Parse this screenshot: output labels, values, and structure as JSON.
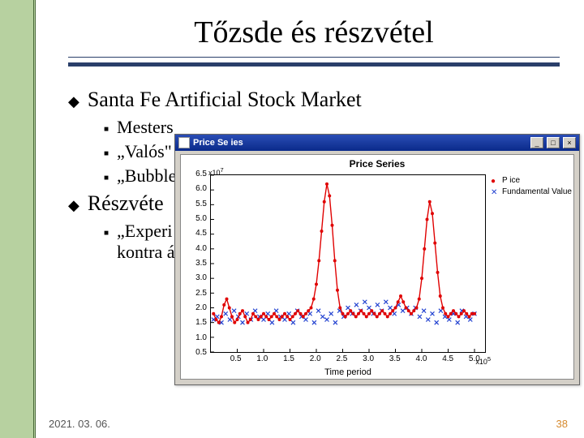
{
  "title": "Tőzsde és részvétel",
  "date": "2021. 03. 06.",
  "page_number": "38",
  "bullets": {
    "item1": "Santa Fe Artificial Stock Market",
    "item1_subs": [
      "Mesters",
      "„Valós\"",
      "„Bubble"
    ],
    "item2": "Részvéte",
    "item2_subs_line1": "„Experi",
    "item2_subs_line2": "kontra á"
  },
  "colors": {
    "left_stripe": "#b7d1a0",
    "underline": "#2a3f6a",
    "page_color": "#d68a2e"
  },
  "chart_window": {
    "titlebar_text": "Price Se ies",
    "chart_title": "Price Series",
    "xlabel": "Time period",
    "y_exponent": "x10",
    "y_exponent_sup": "7",
    "x_exponent": "x10",
    "x_exponent_sup": "5",
    "legend": [
      {
        "label": "P ice",
        "marker": "dot",
        "color": "#e00000"
      },
      {
        "label": "Fundamental Value",
        "marker": "cross",
        "color": "#2040d0"
      }
    ],
    "yticks": [
      "0.5",
      "1.0",
      "1.5",
      "2.0",
      "2.5",
      "3.0",
      "3.5",
      "4.0",
      "4.5",
      "5.0",
      "5.5",
      "6.0",
      "6.5"
    ],
    "xticks": [
      "0.5",
      "1.0",
      "1.5",
      "2.0",
      "2.5",
      "3.0",
      "3.5",
      "4.0",
      "4.5",
      "5.0"
    ],
    "xlim": [
      0.0,
      5.2
    ],
    "ylim": [
      0.5,
      6.5
    ],
    "price_series": {
      "color": "#e00000",
      "points": [
        [
          0.05,
          1.8
        ],
        [
          0.1,
          1.6
        ],
        [
          0.15,
          1.5
        ],
        [
          0.2,
          1.7
        ],
        [
          0.25,
          2.1
        ],
        [
          0.3,
          2.3
        ],
        [
          0.35,
          2.0
        ],
        [
          0.4,
          1.7
        ],
        [
          0.45,
          1.5
        ],
        [
          0.5,
          1.6
        ],
        [
          0.55,
          1.8
        ],
        [
          0.6,
          1.9
        ],
        [
          0.65,
          1.7
        ],
        [
          0.7,
          1.5
        ],
        [
          0.75,
          1.6
        ],
        [
          0.8,
          1.8
        ],
        [
          0.85,
          1.7
        ],
        [
          0.9,
          1.6
        ],
        [
          0.95,
          1.7
        ],
        [
          1.0,
          1.8
        ],
        [
          1.05,
          1.7
        ],
        [
          1.1,
          1.6
        ],
        [
          1.15,
          1.7
        ],
        [
          1.2,
          1.8
        ],
        [
          1.25,
          1.7
        ],
        [
          1.3,
          1.6
        ],
        [
          1.35,
          1.7
        ],
        [
          1.4,
          1.8
        ],
        [
          1.45,
          1.7
        ],
        [
          1.5,
          1.6
        ],
        [
          1.55,
          1.7
        ],
        [
          1.6,
          1.8
        ],
        [
          1.65,
          1.9
        ],
        [
          1.7,
          1.8
        ],
        [
          1.75,
          1.7
        ],
        [
          1.8,
          1.8
        ],
        [
          1.85,
          1.9
        ],
        [
          1.9,
          2.0
        ],
        [
          1.95,
          2.3
        ],
        [
          2.0,
          2.8
        ],
        [
          2.05,
          3.6
        ],
        [
          2.1,
          4.6
        ],
        [
          2.15,
          5.6
        ],
        [
          2.2,
          6.2
        ],
        [
          2.25,
          5.8
        ],
        [
          2.3,
          4.8
        ],
        [
          2.35,
          3.6
        ],
        [
          2.4,
          2.6
        ],
        [
          2.45,
          2.0
        ],
        [
          2.5,
          1.8
        ],
        [
          2.55,
          1.7
        ],
        [
          2.6,
          1.8
        ],
        [
          2.65,
          1.9
        ],
        [
          2.7,
          1.8
        ],
        [
          2.75,
          1.7
        ],
        [
          2.8,
          1.8
        ],
        [
          2.85,
          1.9
        ],
        [
          2.9,
          1.8
        ],
        [
          2.95,
          1.7
        ],
        [
          3.0,
          1.8
        ],
        [
          3.05,
          1.9
        ],
        [
          3.1,
          1.8
        ],
        [
          3.15,
          1.7
        ],
        [
          3.2,
          1.8
        ],
        [
          3.25,
          1.9
        ],
        [
          3.3,
          1.8
        ],
        [
          3.35,
          1.7
        ],
        [
          3.4,
          1.8
        ],
        [
          3.45,
          1.9
        ],
        [
          3.5,
          2.0
        ],
        [
          3.55,
          2.2
        ],
        [
          3.6,
          2.4
        ],
        [
          3.65,
          2.2
        ],
        [
          3.7,
          2.0
        ],
        [
          3.75,
          1.9
        ],
        [
          3.8,
          1.8
        ],
        [
          3.85,
          1.9
        ],
        [
          3.9,
          2.0
        ],
        [
          3.95,
          2.3
        ],
        [
          4.0,
          3.0
        ],
        [
          4.05,
          4.0
        ],
        [
          4.1,
          5.0
        ],
        [
          4.15,
          5.6
        ],
        [
          4.2,
          5.2
        ],
        [
          4.25,
          4.2
        ],
        [
          4.3,
          3.2
        ],
        [
          4.35,
          2.4
        ],
        [
          4.4,
          2.0
        ],
        [
          4.45,
          1.8
        ],
        [
          4.5,
          1.7
        ],
        [
          4.55,
          1.8
        ],
        [
          4.6,
          1.9
        ],
        [
          4.65,
          1.8
        ],
        [
          4.7,
          1.7
        ],
        [
          4.75,
          1.8
        ],
        [
          4.8,
          1.9
        ],
        [
          4.85,
          1.8
        ],
        [
          4.9,
          1.7
        ],
        [
          4.95,
          1.8
        ],
        [
          5.0,
          1.8
        ]
      ]
    },
    "fundamental_series": {
      "color": "#2040d0",
      "points": [
        [
          0.05,
          1.6
        ],
        [
          0.12,
          1.7
        ],
        [
          0.2,
          1.5
        ],
        [
          0.28,
          1.8
        ],
        [
          0.36,
          1.6
        ],
        [
          0.44,
          1.9
        ],
        [
          0.52,
          1.7
        ],
        [
          0.6,
          1.5
        ],
        [
          0.68,
          1.8
        ],
        [
          0.76,
          1.6
        ],
        [
          0.84,
          1.9
        ],
        [
          0.92,
          1.7
        ],
        [
          1.0,
          1.6
        ],
        [
          1.08,
          1.8
        ],
        [
          1.16,
          1.5
        ],
        [
          1.24,
          1.9
        ],
        [
          1.32,
          1.7
        ],
        [
          1.4,
          1.6
        ],
        [
          1.48,
          1.8
        ],
        [
          1.56,
          1.5
        ],
        [
          1.64,
          1.9
        ],
        [
          1.72,
          1.7
        ],
        [
          1.8,
          1.6
        ],
        [
          1.88,
          1.8
        ],
        [
          1.96,
          1.5
        ],
        [
          2.04,
          1.9
        ],
        [
          2.12,
          1.7
        ],
        [
          2.2,
          1.6
        ],
        [
          2.28,
          1.8
        ],
        [
          2.36,
          1.5
        ],
        [
          2.44,
          1.9
        ],
        [
          2.52,
          1.7
        ],
        [
          2.6,
          2.0
        ],
        [
          2.68,
          1.8
        ],
        [
          2.76,
          2.1
        ],
        [
          2.84,
          1.9
        ],
        [
          2.92,
          2.2
        ],
        [
          3.0,
          2.0
        ],
        [
          3.08,
          1.8
        ],
        [
          3.16,
          2.1
        ],
        [
          3.24,
          1.9
        ],
        [
          3.32,
          2.2
        ],
        [
          3.4,
          2.0
        ],
        [
          3.48,
          1.8
        ],
        [
          3.56,
          2.1
        ],
        [
          3.64,
          1.9
        ],
        [
          3.72,
          2.0
        ],
        [
          3.8,
          1.8
        ],
        [
          3.88,
          2.0
        ],
        [
          3.96,
          1.7
        ],
        [
          4.04,
          1.9
        ],
        [
          4.12,
          1.6
        ],
        [
          4.2,
          1.8
        ],
        [
          4.28,
          1.5
        ],
        [
          4.36,
          1.9
        ],
        [
          4.44,
          1.7
        ],
        [
          4.52,
          1.6
        ],
        [
          4.6,
          1.8
        ],
        [
          4.68,
          1.5
        ],
        [
          4.76,
          1.9
        ],
        [
          4.84,
          1.7
        ],
        [
          4.92,
          1.6
        ],
        [
          5.0,
          1.8
        ]
      ]
    }
  }
}
